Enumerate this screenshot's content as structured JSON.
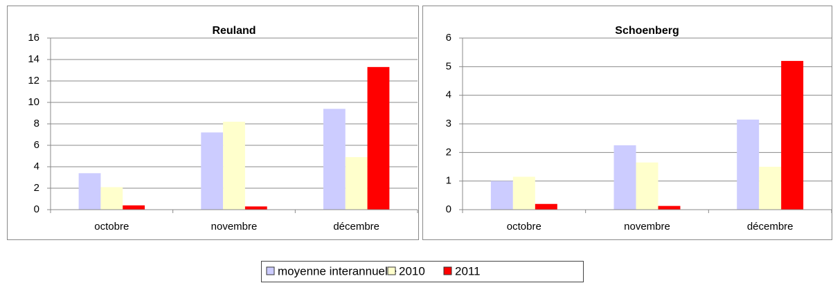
{
  "chart_data": [
    {
      "type": "bar",
      "title": "Reuland",
      "categories": [
        "octobre",
        "novembre",
        "décembre"
      ],
      "series": [
        {
          "name": "moyenne interannuelle",
          "color": "#ccccff",
          "values": [
            3.4,
            7.2,
            9.4
          ]
        },
        {
          "name": "2010",
          "color": "#ffffcc",
          "values": [
            2.1,
            8.2,
            4.9
          ]
        },
        {
          "name": "2011",
          "color": "#ff0000",
          "values": [
            0.4,
            0.3,
            13.3
          ]
        }
      ],
      "ylim": [
        0,
        16
      ],
      "yticks": [
        0,
        2,
        4,
        6,
        8,
        10,
        12,
        14,
        16
      ],
      "grid": true
    },
    {
      "type": "bar",
      "title": "Schoenberg",
      "categories": [
        "octobre",
        "novembre",
        "décembre"
      ],
      "series": [
        {
          "color": "#ccccff",
          "values": [
            1.0,
            2.25,
            3.15
          ]
        },
        {
          "color": "#ffffcc",
          "values": [
            1.15,
            1.65,
            1.5
          ]
        },
        {
          "color": "#ff0000",
          "values": [
            0.2,
            0.13,
            5.2
          ]
        }
      ],
      "ylim": [
        0,
        6
      ],
      "yticks": [
        0,
        1,
        2,
        3,
        4,
        5,
        6
      ],
      "grid": true
    }
  ]
}
